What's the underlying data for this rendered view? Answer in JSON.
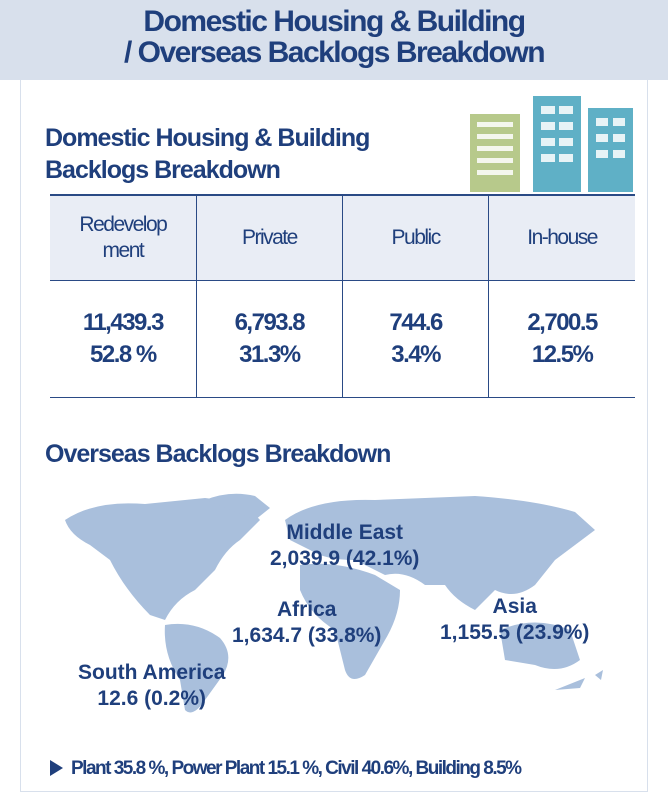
{
  "header": {
    "title": [
      "Domestic Housing & Building",
      "/ Overseas Backlogs Breakdown"
    ]
  },
  "domestic": {
    "title": [
      "Domestic Housing & Building",
      "Backlogs Breakdown"
    ],
    "table": {
      "headers": [
        "Redevelopment",
        "Private",
        "Public",
        "In-house"
      ],
      "amounts": [
        "11,439.3",
        "6,793.8",
        "744.6",
        "2,700.5"
      ],
      "shares": [
        "52.8 %",
        "31.3%",
        "3.4%",
        "12.5%"
      ]
    }
  },
  "overseas": {
    "title": "Overseas Backlogs Breakdown",
    "regions": [
      {
        "name": "Middle East",
        "value": "2,039.9 (42.1%)"
      },
      {
        "name": "Africa",
        "value": "1,634.7 (33.8%)"
      },
      {
        "name": "Asia",
        "value": "1,155.5  (23.9%)"
      },
      {
        "name": "South America",
        "value": "12.6 (0.2%)"
      }
    ]
  },
  "note": "Plant 35.8 %, Power Plant 15.1 %, Civil 40.6%, Building 8.5%"
}
